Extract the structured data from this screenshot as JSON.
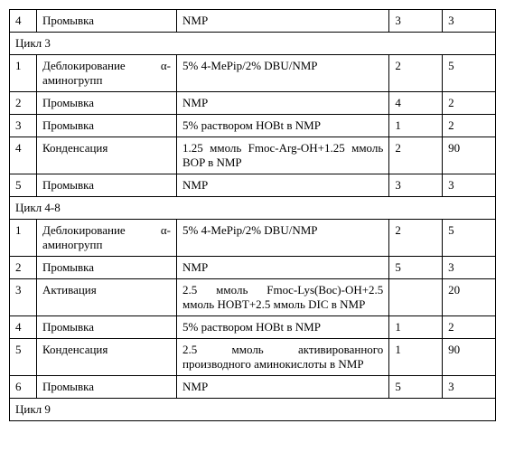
{
  "rows": [
    {
      "type": "row",
      "num": "4",
      "op": "Промывка",
      "reag": "NMP",
      "c1": "3",
      "c2": "3"
    },
    {
      "type": "section",
      "label": "Цикл 3"
    },
    {
      "type": "row",
      "num": "1",
      "op": "Деблокирование α-аминогрупп",
      "reag": "5% 4-MePip/2% DBU/NMP",
      "c1": "2",
      "c2": "5"
    },
    {
      "type": "row",
      "num": "2",
      "op": "Промывка",
      "reag": "NMP",
      "c1": "4",
      "c2": "2"
    },
    {
      "type": "row",
      "num": "3",
      "op": "Промывка",
      "reag": "5% раствором HOBt в NMP",
      "c1": "1",
      "c2": "2"
    },
    {
      "type": "row",
      "num": "4",
      "op": "Конденсация",
      "reag": "1.25 ммоль Fmoc-Arg-OH+1.25 ммоль BOP в NMP",
      "c1": "2",
      "c2": "90"
    },
    {
      "type": "row",
      "num": "5",
      "op": "Промывка",
      "reag": "NMP",
      "c1": "3",
      "c2": "3"
    },
    {
      "type": "section",
      "label": "Цикл 4-8"
    },
    {
      "type": "row",
      "num": "1",
      "op": "Деблокирование α-аминогрупп",
      "reag": "5% 4-MePip/2% DBU/NMP",
      "c1": "2",
      "c2": "5"
    },
    {
      "type": "row",
      "num": "2",
      "op": "Промывка",
      "reag": "NMP",
      "c1": "5",
      "c2": "3"
    },
    {
      "type": "row",
      "num": "3",
      "op": "Активация",
      "reag": "2.5 ммоль Fmoc-Lys(Boc)-OH+2.5 ммоль HOBT+2.5 ммоль DIC в NMP",
      "c1": "",
      "c2": "20"
    },
    {
      "type": "row",
      "num": "4",
      "op": "Промывка",
      "reag": "5% раствором HOBt в NMP",
      "c1": "1",
      "c2": "2"
    },
    {
      "type": "row",
      "num": "5",
      "op": "Конденсация",
      "reag": "2.5 ммоль активированного производного аминокислоты в NMP",
      "c1": "1",
      "c2": "90"
    },
    {
      "type": "row",
      "num": "6",
      "op": "Промывка",
      "reag": "NMP",
      "c1": "5",
      "c2": "3"
    },
    {
      "type": "section",
      "label": "Цикл 9"
    }
  ]
}
